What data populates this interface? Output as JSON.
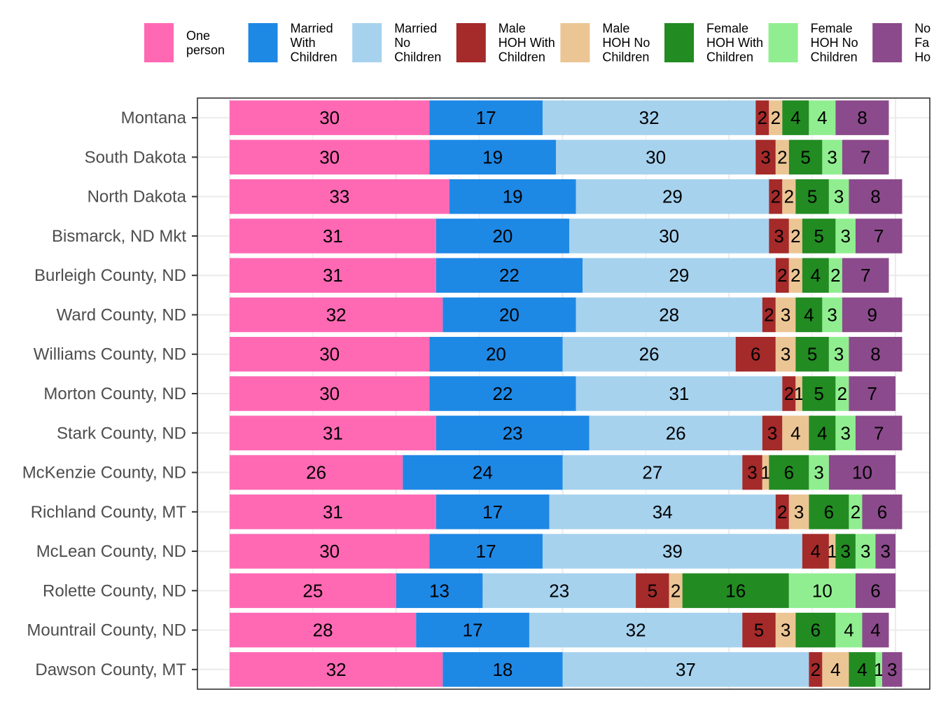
{
  "chart_data": {
    "type": "bar",
    "orientation": "horizontal",
    "stacked": true,
    "title": "",
    "xlabel": "",
    "ylabel": "",
    "xlim": [
      0,
      100
    ],
    "grid": true,
    "legend": {
      "position": "top"
    },
    "categories": [
      "Montana",
      "South Dakota",
      "North Dakota",
      "Bismarck, ND Mkt",
      "Burleigh County, ND",
      "Ward County, ND",
      "Williams County, ND",
      "Morton County, ND",
      "Stark County, ND",
      "McKenzie County, ND",
      "Richland County, MT",
      "McLean County, ND",
      "Rolette County, ND",
      "Mountrail County, ND",
      "Dawson County, MT"
    ],
    "series": [
      {
        "name": "One person",
        "legend_lines": [
          "One",
          "person"
        ],
        "color": "#ff69b4",
        "values": [
          30,
          30,
          33,
          31,
          31,
          32,
          30,
          30,
          31,
          26,
          31,
          30,
          25,
          28,
          32
        ]
      },
      {
        "name": "Married With Children",
        "legend_lines": [
          "Married",
          "With",
          "Children"
        ],
        "color": "#1e88e5",
        "values": [
          17,
          19,
          19,
          20,
          22,
          20,
          20,
          22,
          23,
          24,
          17,
          17,
          13,
          17,
          18
        ]
      },
      {
        "name": "Married No Children",
        "legend_lines": [
          "Married",
          "No",
          "Children"
        ],
        "color": "#a6d2ee",
        "values": [
          32,
          30,
          29,
          30,
          29,
          28,
          26,
          31,
          26,
          27,
          34,
          39,
          23,
          32,
          37
        ]
      },
      {
        "name": "Male HOH With Children",
        "legend_lines": [
          "Male",
          "HOH With",
          "Children"
        ],
        "color": "#a52a2a",
        "values": [
          2,
          3,
          2,
          3,
          2,
          2,
          6,
          2,
          3,
          3,
          2,
          4,
          5,
          5,
          2
        ]
      },
      {
        "name": "Male HOH No Children",
        "legend_lines": [
          "Male",
          "HOH No",
          "Children"
        ],
        "color": "#ecc594",
        "values": [
          2,
          2,
          2,
          2,
          2,
          3,
          3,
          1,
          4,
          1,
          3,
          1,
          2,
          3,
          4
        ]
      },
      {
        "name": "Female HOH With Children",
        "legend_lines": [
          "Female",
          "HOH With",
          "Children"
        ],
        "color": "#228b22",
        "values": [
          4,
          5,
          5,
          5,
          4,
          4,
          5,
          5,
          4,
          6,
          6,
          3,
          16,
          6,
          4
        ]
      },
      {
        "name": "Female HOH No Children",
        "legend_lines": [
          "Female",
          "HOH No",
          "Children"
        ],
        "color": "#90ee90",
        "values": [
          4,
          3,
          3,
          3,
          2,
          3,
          3,
          2,
          3,
          3,
          2,
          3,
          10,
          4,
          1
        ]
      },
      {
        "name": "Non Family Ho",
        "legend_lines": [
          "No",
          "Fa",
          "Ho"
        ],
        "color": "#8b4a8c",
        "values": [
          8,
          7,
          8,
          7,
          7,
          9,
          8,
          7,
          7,
          10,
          6,
          3,
          6,
          4,
          3
        ]
      }
    ]
  }
}
